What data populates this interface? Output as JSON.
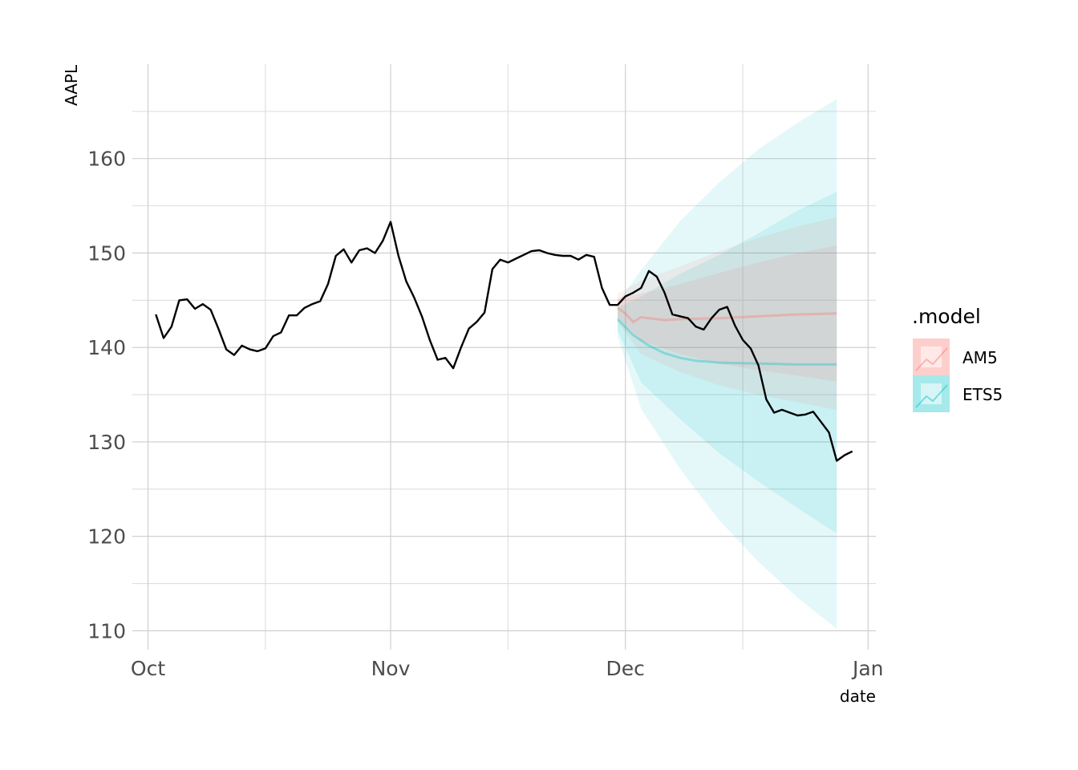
{
  "chart_data": {
    "type": "line",
    "title": "",
    "xlabel": "date",
    "ylabel": "AAPL",
    "x_type": "date",
    "xlim": [
      "2021-09-29",
      "2022-01-02"
    ],
    "ylim": [
      108,
      170
    ],
    "x_ticks": [
      {
        "date": "2021-10-01",
        "label": "Oct"
      },
      {
        "date": "2021-11-01",
        "label": "Nov"
      },
      {
        "date": "2021-12-01",
        "label": "Dec"
      },
      {
        "date": "2022-01-01",
        "label": "Jan"
      }
    ],
    "x_minor_ticks": [
      "2021-10-16",
      "2021-11-16",
      "2021-12-16"
    ],
    "y_ticks": [
      110,
      120,
      130,
      140,
      150,
      160
    ],
    "y_minor_ticks": [
      115,
      125,
      135,
      145,
      155,
      165
    ],
    "grid": true,
    "legend": {
      "title": ".model",
      "position": "right",
      "entries": [
        {
          "label": "AM5",
          "color": "#F8766D"
        },
        {
          "label": "ETS5",
          "color": "#00BFC4"
        }
      ]
    },
    "observed": {
      "color": "#000000",
      "points": [
        [
          "2021-10-02",
          143.5
        ],
        [
          "2021-10-03",
          141.0
        ],
        [
          "2021-10-04",
          142.2
        ],
        [
          "2021-10-05",
          145.0
        ],
        [
          "2021-10-06",
          145.1
        ],
        [
          "2021-10-07",
          144.1
        ],
        [
          "2021-10-08",
          144.6
        ],
        [
          "2021-10-09",
          144.0
        ],
        [
          "2021-10-10",
          142.0
        ],
        [
          "2021-10-11",
          139.8
        ],
        [
          "2021-10-12",
          139.2
        ],
        [
          "2021-10-13",
          140.2
        ],
        [
          "2021-10-14",
          139.8
        ],
        [
          "2021-10-15",
          139.6
        ],
        [
          "2021-10-16",
          139.9
        ],
        [
          "2021-10-17",
          141.2
        ],
        [
          "2021-10-18",
          141.6
        ],
        [
          "2021-10-19",
          143.4
        ],
        [
          "2021-10-20",
          143.4
        ],
        [
          "2021-10-21",
          144.2
        ],
        [
          "2021-10-22",
          144.6
        ],
        [
          "2021-10-23",
          144.9
        ],
        [
          "2021-10-24",
          146.7
        ],
        [
          "2021-10-25",
          149.7
        ],
        [
          "2021-10-26",
          150.4
        ],
        [
          "2021-10-27",
          149.0
        ],
        [
          "2021-10-28",
          150.3
        ],
        [
          "2021-10-29",
          150.5
        ],
        [
          "2021-10-30",
          150.0
        ],
        [
          "2021-10-31",
          151.3
        ],
        [
          "2021-11-01",
          153.3
        ],
        [
          "2021-11-02",
          149.7
        ],
        [
          "2021-11-03",
          147.0
        ],
        [
          "2021-11-04",
          145.3
        ],
        [
          "2021-11-05",
          143.3
        ],
        [
          "2021-11-06",
          140.8
        ],
        [
          "2021-11-07",
          138.7
        ],
        [
          "2021-11-08",
          138.9
        ],
        [
          "2021-11-09",
          137.8
        ],
        [
          "2021-11-10",
          140.0
        ],
        [
          "2021-11-11",
          142.0
        ],
        [
          "2021-11-12",
          142.7
        ],
        [
          "2021-11-13",
          143.7
        ],
        [
          "2021-11-14",
          148.3
        ],
        [
          "2021-11-15",
          149.3
        ],
        [
          "2021-11-16",
          149.0
        ],
        [
          "2021-11-17",
          149.4
        ],
        [
          "2021-11-18",
          149.8
        ],
        [
          "2021-11-19",
          150.2
        ],
        [
          "2021-11-20",
          150.3
        ],
        [
          "2021-11-21",
          150.0
        ],
        [
          "2021-11-22",
          149.8
        ],
        [
          "2021-11-23",
          149.7
        ],
        [
          "2021-11-24",
          149.7
        ],
        [
          "2021-11-25",
          149.3
        ],
        [
          "2021-11-26",
          149.8
        ],
        [
          "2021-11-27",
          149.6
        ],
        [
          "2021-11-28",
          146.3
        ],
        [
          "2021-11-29",
          144.5
        ],
        [
          "2021-11-30",
          144.5
        ],
        [
          "2021-12-01",
          145.4
        ],
        [
          "2021-12-02",
          145.8
        ],
        [
          "2021-12-03",
          146.3
        ],
        [
          "2021-12-04",
          148.1
        ],
        [
          "2021-12-05",
          147.5
        ],
        [
          "2021-12-06",
          145.8
        ],
        [
          "2021-12-07",
          143.5
        ],
        [
          "2021-12-08",
          143.3
        ],
        [
          "2021-12-09",
          143.1
        ],
        [
          "2021-12-10",
          142.2
        ],
        [
          "2021-12-11",
          141.9
        ],
        [
          "2021-12-12",
          143.1
        ],
        [
          "2021-12-13",
          144.0
        ],
        [
          "2021-12-14",
          144.3
        ],
        [
          "2021-12-15",
          142.3
        ],
        [
          "2021-12-16",
          140.8
        ],
        [
          "2021-12-17",
          139.9
        ],
        [
          "2021-12-18",
          138.1
        ],
        [
          "2021-12-19",
          134.5
        ],
        [
          "2021-12-20",
          133.1
        ],
        [
          "2021-12-21",
          133.4
        ],
        [
          "2021-12-22",
          133.1
        ],
        [
          "2021-12-23",
          132.8
        ],
        [
          "2021-12-24",
          132.9
        ],
        [
          "2021-12-25",
          133.2
        ],
        [
          "2021-12-26",
          132.1
        ],
        [
          "2021-12-27",
          131.0
        ],
        [
          "2021-12-28",
          128.0
        ],
        [
          "2021-12-29",
          128.6
        ],
        [
          "2021-12-30",
          129.0
        ]
      ]
    },
    "forecasts": [
      {
        "name": "AM5",
        "color": "#F8766D",
        "points": [
          [
            "2021-11-30",
            144.2
          ],
          [
            "2021-12-01",
            143.6
          ],
          [
            "2021-12-02",
            142.7
          ],
          [
            "2021-12-03",
            143.2
          ],
          [
            "2021-12-04",
            143.1
          ],
          [
            "2021-12-05",
            143.0
          ],
          [
            "2021-12-06",
            142.9
          ],
          [
            "2021-12-08",
            143.0
          ],
          [
            "2021-12-13",
            143.1
          ],
          [
            "2021-12-18",
            143.3
          ],
          [
            "2021-12-23",
            143.5
          ],
          [
            "2021-12-28",
            143.6
          ]
        ],
        "band_80": [
          [
            "2021-11-30",
            143.2,
            145.2
          ],
          [
            "2021-12-03",
            140.7,
            145.7
          ],
          [
            "2021-12-08",
            139.3,
            146.7
          ],
          [
            "2021-12-13",
            138.3,
            147.9
          ],
          [
            "2021-12-18",
            137.6,
            149.0
          ],
          [
            "2021-12-23",
            137.0,
            150.0
          ],
          [
            "2021-12-28",
            136.4,
            150.8
          ]
        ],
        "band_95": [
          [
            "2021-11-30",
            142.7,
            145.7
          ],
          [
            "2021-12-03",
            139.3,
            147.1
          ],
          [
            "2021-12-08",
            137.4,
            148.6
          ],
          [
            "2021-12-13",
            136.0,
            150.2
          ],
          [
            "2021-12-18",
            135.0,
            151.6
          ],
          [
            "2021-12-23",
            134.2,
            152.8
          ],
          [
            "2021-12-28",
            133.4,
            153.8
          ]
        ]
      },
      {
        "name": "ETS5",
        "color": "#00BFC4",
        "points": [
          [
            "2021-11-30",
            143.0
          ],
          [
            "2021-12-02",
            141.3
          ],
          [
            "2021-12-04",
            140.2
          ],
          [
            "2021-12-06",
            139.4
          ],
          [
            "2021-12-08",
            138.9
          ],
          [
            "2021-12-10",
            138.6
          ],
          [
            "2021-12-13",
            138.4
          ],
          [
            "2021-12-18",
            138.3
          ],
          [
            "2021-12-23",
            138.2
          ],
          [
            "2021-12-28",
            138.2
          ]
        ],
        "band_80": [
          [
            "2021-11-30",
            141.8,
            144.2
          ],
          [
            "2021-12-03",
            136.3,
            145.4
          ],
          [
            "2021-12-08",
            132.4,
            147.8
          ],
          [
            "2021-12-13",
            128.8,
            149.8
          ],
          [
            "2021-12-18",
            125.8,
            152.1
          ],
          [
            "2021-12-23",
            123.0,
            154.5
          ],
          [
            "2021-12-28",
            120.3,
            156.5
          ]
        ],
        "band_95": [
          [
            "2021-11-30",
            141.2,
            144.8
          ],
          [
            "2021-12-03",
            133.5,
            148.2
          ],
          [
            "2021-12-08",
            127.1,
            153.4
          ],
          [
            "2021-12-13",
            121.7,
            157.5
          ],
          [
            "2021-12-18",
            117.3,
            161.0
          ],
          [
            "2021-12-23",
            113.5,
            163.8
          ],
          [
            "2021-12-28",
            110.2,
            166.3
          ]
        ]
      }
    ]
  }
}
